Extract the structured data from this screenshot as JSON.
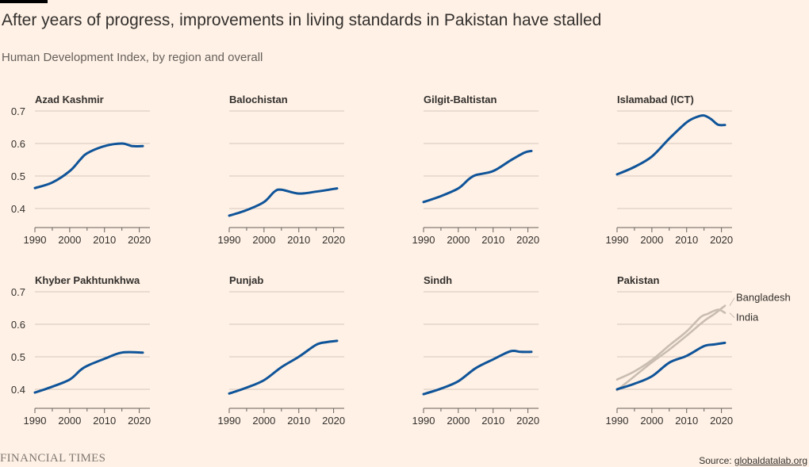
{
  "header": {
    "title": "After years of progress, improvements in living standards in Pakistan have stalled",
    "subtitle": "Human Development Index, by region and overall"
  },
  "footer": {
    "brand": "FINANCIAL TIMES",
    "source_prefix": "Source: ",
    "source_link": "globaldatalab.org"
  },
  "colors": {
    "background": "#fff1e5",
    "main_series": "#0f5499",
    "comparison_series": "#c9bcb1",
    "gridline": "#d5c8bc",
    "text": "#33302e"
  },
  "chart_data": [
    {
      "type": "line",
      "title": "Azad Kashmir",
      "x": [
        1990,
        1995,
        2000,
        2003,
        2005,
        2010,
        2015,
        2018,
        2021
      ],
      "y": [
        0.463,
        0.48,
        0.515,
        0.55,
        0.57,
        0.592,
        0.6,
        0.592,
        0.592
      ],
      "xticks": [
        "1990",
        "2000",
        "2010",
        "2020"
      ],
      "yticks": [
        "0.4",
        "0.5",
        "0.6",
        "0.7"
      ],
      "xlim": [
        1990,
        2021
      ],
      "ylim": [
        0.35,
        0.72
      ]
    },
    {
      "type": "line",
      "title": "Balochistan",
      "x": [
        1990,
        1995,
        2000,
        2003,
        2005,
        2010,
        2015,
        2021
      ],
      "y": [
        0.378,
        0.395,
        0.42,
        0.452,
        0.458,
        0.446,
        0.452,
        0.462
      ],
      "xticks": [
        "1990",
        "2000",
        "2010",
        "2020"
      ],
      "xlim": [
        1990,
        2021
      ],
      "ylim": [
        0.35,
        0.72
      ]
    },
    {
      "type": "line",
      "title": "Gilgit-Baltistan",
      "x": [
        1990,
        1995,
        2000,
        2003,
        2005,
        2010,
        2015,
        2019,
        2021
      ],
      "y": [
        0.42,
        0.438,
        0.462,
        0.49,
        0.503,
        0.515,
        0.548,
        0.572,
        0.577
      ],
      "xticks": [
        "1990",
        "2000",
        "2010",
        "2020"
      ],
      "xlim": [
        1990,
        2021
      ],
      "ylim": [
        0.35,
        0.72
      ]
    },
    {
      "type": "line",
      "title": "Islamabad (ICT)",
      "x": [
        1990,
        1995,
        2000,
        2005,
        2010,
        2013,
        2015,
        2017,
        2019,
        2021
      ],
      "y": [
        0.505,
        0.528,
        0.56,
        0.615,
        0.665,
        0.682,
        0.686,
        0.675,
        0.658,
        0.657
      ],
      "xticks": [
        "1990",
        "2000",
        "2010",
        "2020"
      ],
      "xlim": [
        1990,
        2021
      ],
      "ylim": [
        0.35,
        0.72
      ]
    },
    {
      "type": "line",
      "title": "Khyber Pakhtunkhwa",
      "x": [
        1990,
        1995,
        2000,
        2003,
        2005,
        2010,
        2015,
        2021
      ],
      "y": [
        0.39,
        0.408,
        0.43,
        0.458,
        0.472,
        0.494,
        0.513,
        0.513
      ],
      "xticks": [
        "1990",
        "2000",
        "2010",
        "2020"
      ],
      "yticks": [
        "0.4",
        "0.5",
        "0.6",
        "0.7"
      ],
      "xlim": [
        1990,
        2021
      ],
      "ylim": [
        0.35,
        0.72
      ]
    },
    {
      "type": "line",
      "title": "Punjab",
      "x": [
        1990,
        1995,
        2000,
        2005,
        2010,
        2015,
        2018,
        2021
      ],
      "y": [
        0.387,
        0.405,
        0.428,
        0.468,
        0.5,
        0.537,
        0.545,
        0.549
      ],
      "xticks": [
        "1990",
        "2000",
        "2010",
        "2020"
      ],
      "xlim": [
        1990,
        2021
      ],
      "ylim": [
        0.35,
        0.72
      ]
    },
    {
      "type": "line",
      "title": "Sindh",
      "x": [
        1990,
        1995,
        2000,
        2005,
        2010,
        2015,
        2018,
        2021
      ],
      "y": [
        0.385,
        0.402,
        0.425,
        0.465,
        0.492,
        0.517,
        0.515,
        0.515
      ],
      "xticks": [
        "1990",
        "2000",
        "2010",
        "2020"
      ],
      "xlim": [
        1990,
        2021
      ],
      "ylim": [
        0.35,
        0.72
      ]
    },
    {
      "type": "line",
      "title": "Pakistan",
      "x": [
        1990,
        1995,
        2000,
        2005,
        2010,
        2015,
        2018,
        2021
      ],
      "y": [
        0.4,
        0.417,
        0.44,
        0.482,
        0.503,
        0.533,
        0.538,
        0.543
      ],
      "comparison": [
        {
          "name": "Bangladesh",
          "x": [
            1990,
            1995,
            2000,
            2005,
            2010,
            2015,
            2018,
            2021
          ],
          "y": [
            0.397,
            0.44,
            0.483,
            0.522,
            0.565,
            0.61,
            0.632,
            0.657
          ]
        },
        {
          "name": "India",
          "x": [
            1990,
            1995,
            2000,
            2005,
            2010,
            2014,
            2016,
            2019,
            2021
          ],
          "y": [
            0.43,
            0.455,
            0.49,
            0.535,
            0.578,
            0.622,
            0.632,
            0.645,
            0.635
          ]
        }
      ],
      "xticks": [
        "1990",
        "2000",
        "2010",
        "2020"
      ],
      "xlim": [
        1990,
        2021
      ],
      "ylim": [
        0.35,
        0.72
      ]
    }
  ]
}
